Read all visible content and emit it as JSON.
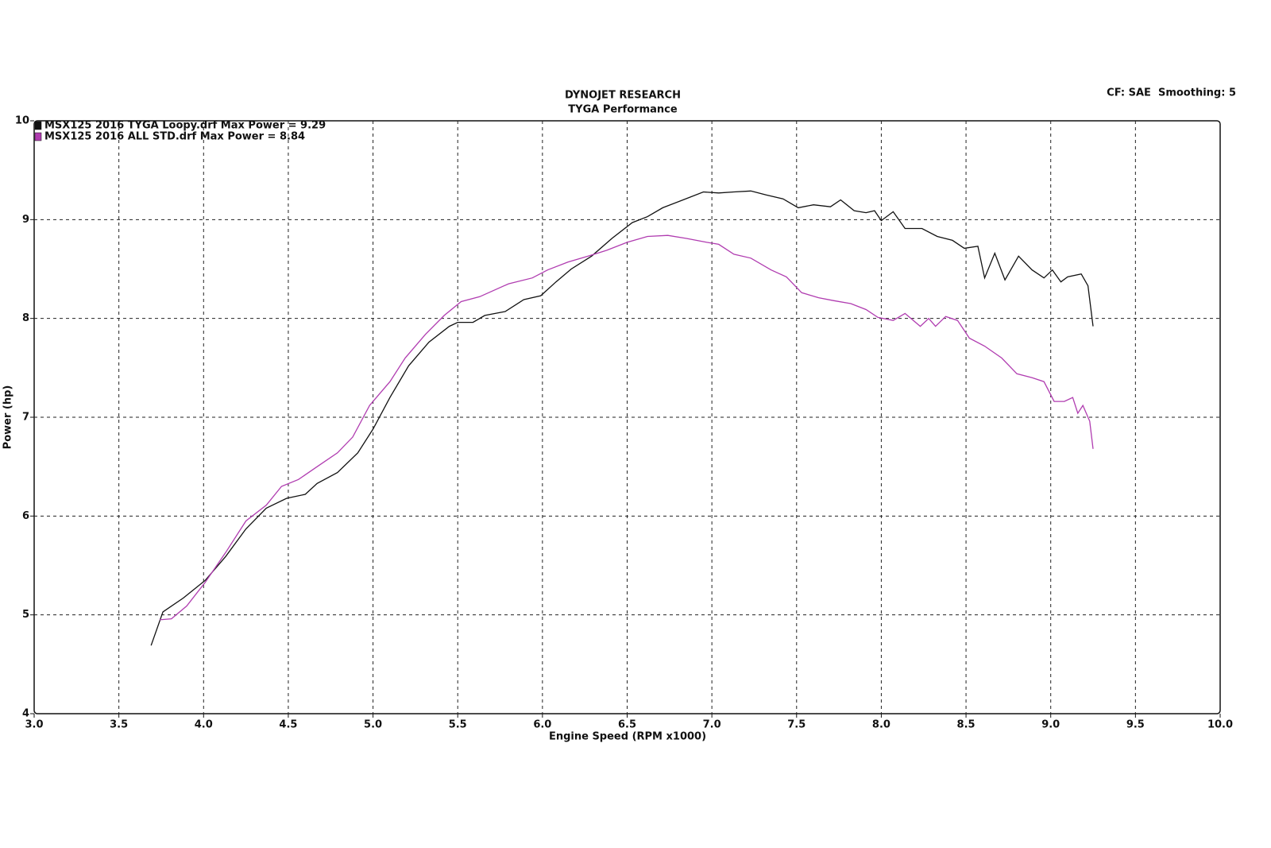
{
  "chart_data": {
    "type": "line",
    "title": "DYNOJET RESEARCH",
    "subtitle": "TYGA Performance",
    "annotation": "CF: SAE  Smoothing: 5",
    "x_label": "Engine Speed (RPM x1000)",
    "y_label": "Power (hp)",
    "xlim": [
      3,
      10
    ],
    "ylim": [
      4,
      10
    ],
    "xticks": [
      {
        "value": 3,
        "label": "3.0"
      },
      {
        "value": 3.5,
        "label": "3.5"
      },
      {
        "value": 4,
        "label": "4.0"
      },
      {
        "value": 4.5,
        "label": "4.5"
      },
      {
        "value": 5,
        "label": "5.0"
      },
      {
        "value": 5.5,
        "label": "5.5"
      },
      {
        "value": 6,
        "label": "6.0"
      },
      {
        "value": 6.5,
        "label": "6.5"
      },
      {
        "value": 7,
        "label": "7.0"
      },
      {
        "value": 7.5,
        "label": "7.5"
      },
      {
        "value": 8,
        "label": "8.0"
      },
      {
        "value": 8.5,
        "label": "8.5"
      },
      {
        "value": 9,
        "label": "9.0"
      },
      {
        "value": 9.5,
        "label": "9.5"
      },
      {
        "value": 10,
        "label": "10.0"
      }
    ],
    "yticks": [
      4,
      5,
      6,
      7,
      8,
      9,
      10
    ],
    "grid": true,
    "legend": "top-left",
    "series": [
      {
        "name": "MSX125 2016 TYGA Loopy.drf Max Power = 9.29",
        "color": "#111111",
        "x": [
          3.69,
          3.76,
          3.88,
          4.01,
          4.13,
          4.25,
          4.37,
          4.49,
          4.6,
          4.67,
          4.79,
          4.91,
          5.0,
          5.1,
          5.21,
          5.33,
          5.45,
          5.5,
          5.59,
          5.66,
          5.78,
          5.89,
          5.99,
          6.08,
          6.17,
          6.29,
          6.41,
          6.53,
          6.62,
          6.71,
          6.83,
          6.95,
          7.04,
          7.13,
          7.23,
          7.32,
          7.42,
          7.51,
          7.6,
          7.7,
          7.76,
          7.84,
          7.91,
          7.96,
          8.0,
          8.07,
          8.14,
          8.24,
          8.33,
          8.42,
          8.49,
          8.57,
          8.61,
          8.67,
          8.73,
          8.81,
          8.89,
          8.96,
          9.01,
          9.06,
          9.1,
          9.18,
          9.22,
          9.25
        ],
        "values": [
          4.69,
          5.03,
          5.17,
          5.35,
          5.59,
          5.87,
          6.08,
          6.18,
          6.22,
          6.33,
          6.44,
          6.64,
          6.88,
          7.2,
          7.52,
          7.76,
          7.92,
          7.96,
          7.96,
          8.03,
          8.07,
          8.19,
          8.23,
          8.37,
          8.5,
          8.63,
          8.81,
          8.97,
          9.03,
          9.12,
          9.2,
          9.28,
          9.27,
          9.28,
          9.29,
          9.25,
          9.21,
          9.12,
          9.15,
          9.13,
          9.2,
          9.09,
          9.07,
          9.09,
          8.99,
          9.08,
          8.91,
          8.91,
          8.83,
          8.79,
          8.71,
          8.73,
          8.41,
          8.66,
          8.39,
          8.63,
          8.49,
          8.41,
          8.49,
          8.37,
          8.42,
          8.45,
          8.33,
          7.92
        ]
      },
      {
        "name": "MSX125 2016 ALL STD.drf Max Power = 8.84",
        "color": "#b03cb0",
        "x": [
          3.74,
          3.81,
          3.9,
          4.01,
          4.13,
          4.25,
          4.37,
          4.46,
          4.56,
          4.67,
          4.79,
          4.88,
          4.98,
          5.1,
          5.19,
          5.31,
          5.42,
          5.52,
          5.63,
          5.8,
          5.94,
          6.03,
          6.15,
          6.27,
          6.38,
          6.5,
          6.62,
          6.74,
          6.85,
          6.97,
          7.04,
          7.13,
          7.23,
          7.35,
          7.44,
          7.53,
          7.63,
          7.72,
          7.82,
          7.91,
          7.98,
          8.07,
          8.14,
          8.23,
          8.28,
          8.32,
          8.38,
          8.45,
          8.52,
          8.61,
          8.71,
          8.8,
          8.89,
          8.96,
          9.02,
          9.08,
          9.13,
          9.16,
          9.19,
          9.23,
          9.25
        ],
        "values": [
          4.95,
          4.96,
          5.09,
          5.33,
          5.63,
          5.95,
          6.11,
          6.3,
          6.37,
          6.5,
          6.64,
          6.8,
          7.12,
          7.36,
          7.6,
          7.84,
          8.03,
          8.17,
          8.22,
          8.35,
          8.41,
          8.49,
          8.57,
          8.63,
          8.69,
          8.77,
          8.83,
          8.84,
          8.81,
          8.77,
          8.75,
          8.65,
          8.61,
          8.49,
          8.42,
          8.26,
          8.21,
          8.18,
          8.15,
          8.09,
          8.01,
          7.98,
          8.05,
          7.92,
          8.0,
          7.92,
          8.02,
          7.98,
          7.8,
          7.72,
          7.6,
          7.44,
          7.4,
          7.36,
          7.16,
          7.16,
          7.2,
          7.04,
          7.12,
          6.96,
          6.68
        ]
      }
    ]
  }
}
